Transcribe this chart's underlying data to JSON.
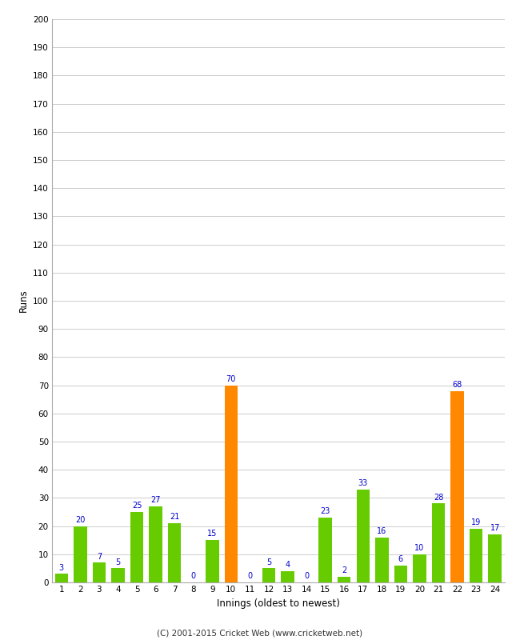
{
  "innings": [
    1,
    2,
    3,
    4,
    5,
    6,
    7,
    8,
    9,
    10,
    11,
    12,
    13,
    14,
    15,
    16,
    17,
    18,
    19,
    20,
    21,
    22,
    23,
    24
  ],
  "values": [
    3,
    20,
    7,
    5,
    25,
    27,
    21,
    0,
    15,
    70,
    0,
    5,
    4,
    0,
    23,
    2,
    33,
    16,
    6,
    10,
    28,
    68,
    19,
    17
  ],
  "bar_colors": [
    "#66cc00",
    "#66cc00",
    "#66cc00",
    "#66cc00",
    "#66cc00",
    "#66cc00",
    "#66cc00",
    "#66cc00",
    "#66cc00",
    "#ff8800",
    "#66cc00",
    "#66cc00",
    "#66cc00",
    "#66cc00",
    "#66cc00",
    "#66cc00",
    "#66cc00",
    "#66cc00",
    "#66cc00",
    "#66cc00",
    "#66cc00",
    "#ff8800",
    "#66cc00",
    "#66cc00"
  ],
  "xlabel": "Innings (oldest to newest)",
  "ylabel": "Runs",
  "ylim": [
    0,
    200
  ],
  "yticks": [
    0,
    10,
    20,
    30,
    40,
    50,
    60,
    70,
    80,
    90,
    100,
    110,
    120,
    130,
    140,
    150,
    160,
    170,
    180,
    190,
    200
  ],
  "footer": "(C) 2001-2015 Cricket Web (www.cricketweb.net)",
  "label_color": "#0000cc",
  "bg_color": "#ffffff",
  "grid_color": "#cccccc"
}
